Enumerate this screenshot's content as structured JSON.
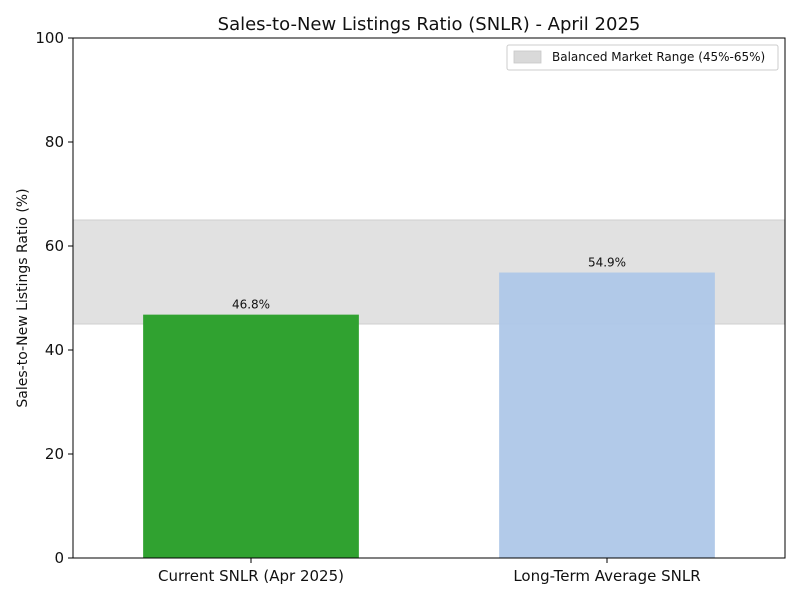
{
  "chart_data": {
    "type": "bar",
    "title": "Sales-to-New Listings Ratio (SNLR) - April 2025",
    "xlabel": "",
    "ylabel": "Sales-to-New Listings Ratio (%)",
    "ylim": [
      0,
      100
    ],
    "yticks": [
      0,
      20,
      40,
      60,
      80,
      100
    ],
    "categories": [
      "Current SNLR (Apr 2025)",
      "Long-Term Average SNLR"
    ],
    "values": [
      46.8,
      54.9
    ],
    "value_labels": [
      "46.8%",
      "54.9%"
    ],
    "bar_colors": [
      "#2ca02c",
      "#aec7e8"
    ],
    "band": {
      "label": "Balanced Market Range (45%-65%)",
      "from": 45,
      "to": 65,
      "color": "#d9d9d9"
    },
    "legend_position": "top-right",
    "grid": false
  }
}
